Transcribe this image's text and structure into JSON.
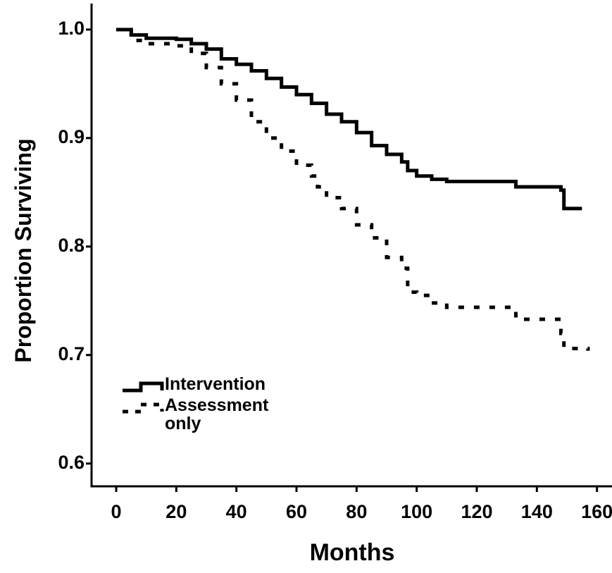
{
  "chart_data": {
    "type": "line",
    "step": true,
    "x_label": "Months",
    "y_label": "Proportion Surviving",
    "xlim": [
      -8.2,
      165
    ],
    "ylim": [
      0.579,
      1.024
    ],
    "xticks": [
      0,
      20,
      40,
      60,
      80,
      100,
      120,
      140,
      160
    ],
    "yticks": [
      {
        "value": 1,
        "label": "1.0"
      },
      0.9,
      0.8,
      0.7,
      0.6
    ],
    "legend": "lower left",
    "series": [
      {
        "name": "Intervention",
        "color": "#000000",
        "line_style": "solid",
        "x": [
          0,
          5,
          10,
          20,
          25,
          30,
          35,
          40,
          45,
          50,
          55,
          60,
          65,
          70,
          75,
          80,
          85,
          90,
          95,
          97,
          100,
          105,
          110,
          133,
          148,
          149,
          155
        ],
        "values": [
          1.0,
          0.995,
          0.992,
          0.991,
          0.987,
          0.982,
          0.973,
          0.968,
          0.962,
          0.955,
          0.947,
          0.94,
          0.932,
          0.922,
          0.915,
          0.905,
          0.893,
          0.885,
          0.878,
          0.87,
          0.865,
          0.862,
          0.86,
          0.855,
          0.852,
          0.835,
          0.835
        ]
      },
      {
        "name": "Assessment only",
        "color": "#000000",
        "line_style": "dashed",
        "x": [
          0,
          5,
          10,
          20,
          25,
          30,
          35,
          40,
          45,
          50,
          55,
          60,
          65,
          67,
          70,
          75,
          80,
          85,
          90,
          95,
          97,
          100,
          105,
          110,
          133,
          148,
          149,
          157
        ],
        "values": [
          1.0,
          0.99,
          0.987,
          0.985,
          0.978,
          0.965,
          0.95,
          0.935,
          0.915,
          0.9,
          0.888,
          0.875,
          0.865,
          0.855,
          0.845,
          0.835,
          0.82,
          0.808,
          0.79,
          0.78,
          0.758,
          0.755,
          0.748,
          0.744,
          0.733,
          0.72,
          0.706,
          0.704
        ]
      }
    ]
  }
}
